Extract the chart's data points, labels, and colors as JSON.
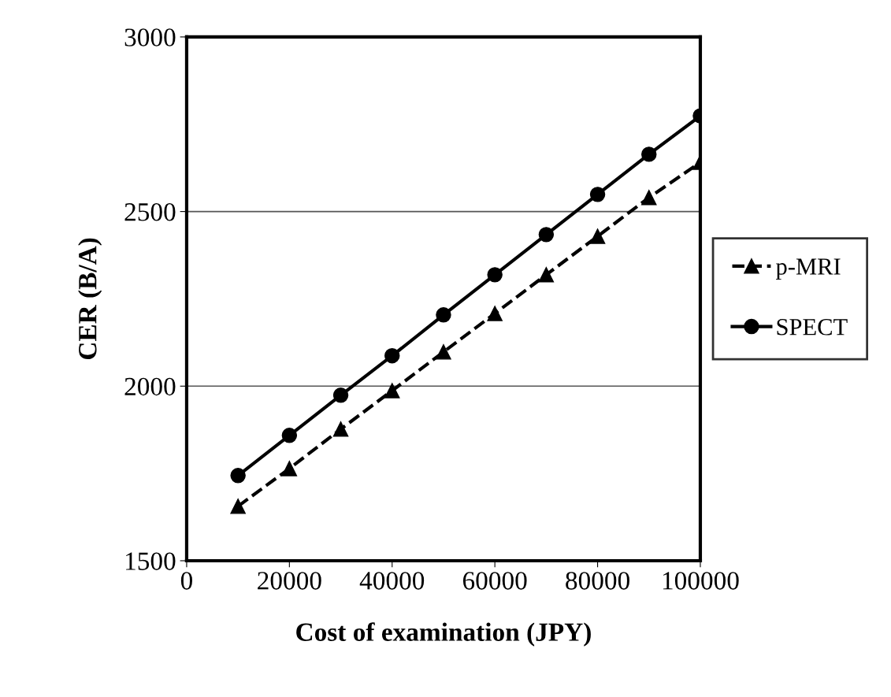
{
  "chart_data": {
    "type": "line",
    "xlabel": "Cost of examination (JPY)",
    "ylabel": "CER (B/A)",
    "x": [
      10000,
      20000,
      30000,
      40000,
      50000,
      60000,
      70000,
      80000,
      90000,
      100000
    ],
    "series": [
      {
        "name": "p-MRI",
        "color": "#000000",
        "marker": "triangle",
        "line_style": "dashed",
        "values": [
          1656,
          1764,
          1877,
          1987,
          2098,
          2208,
          2319,
          2429,
          2540,
          2641
        ]
      },
      {
        "name": "SPECT",
        "color": "#000000",
        "marker": "circle",
        "line_style": "solid",
        "values": [
          1744,
          1859,
          1974,
          2087,
          2204,
          2319,
          2434,
          2549,
          2664,
          2774
        ]
      }
    ],
    "xlim": [
      0,
      100000
    ],
    "xticks": [
      0,
      20000,
      40000,
      60000,
      80000,
      100000
    ],
    "ylim": [
      1500,
      3000
    ],
    "yticks": [
      1500,
      2000,
      2500,
      3000
    ],
    "grid": "y",
    "legend": "right"
  }
}
